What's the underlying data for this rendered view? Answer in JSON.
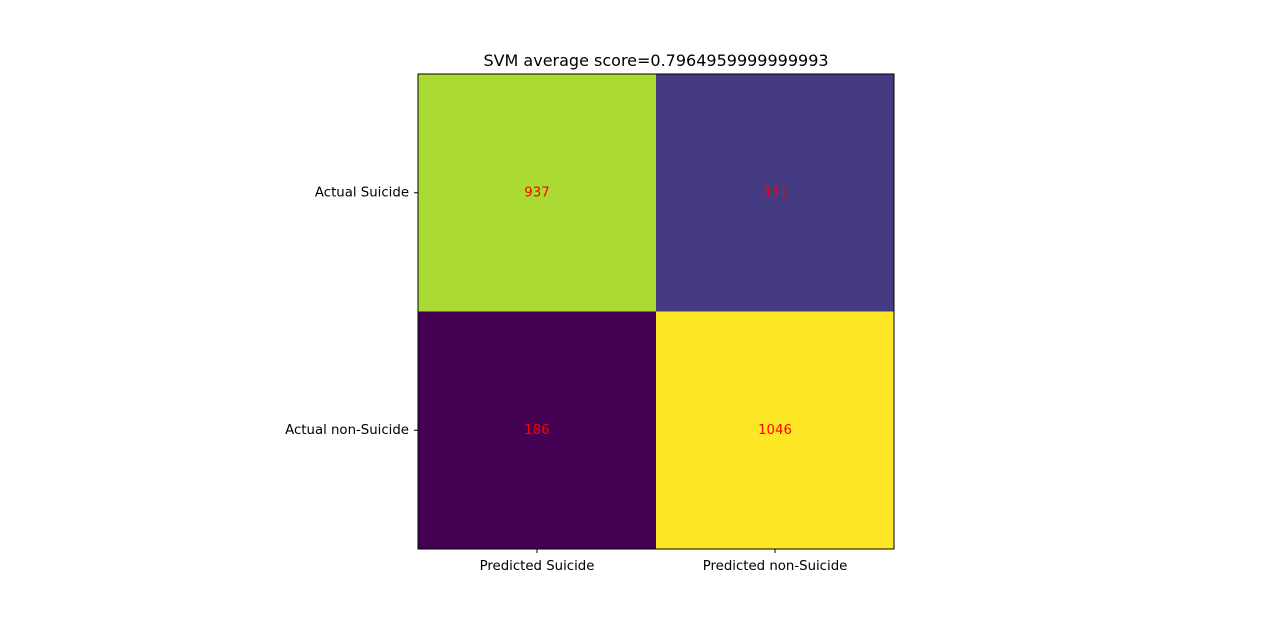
{
  "chart_data": {
    "type": "heatmap",
    "title": "SVM average score=0.7964959999999993",
    "xlabel": "",
    "ylabel": "",
    "x_categories": [
      "Predicted Suicide",
      "Predicted non-Suicide"
    ],
    "y_categories": [
      "Actual Suicide",
      "Actual non-Suicide"
    ],
    "values": [
      [
        937,
        331
      ],
      [
        186,
        1046
      ]
    ],
    "colormap": "viridis",
    "value_range": [
      186,
      1046
    ],
    "annotation_color": "#ff0000",
    "grid": false
  }
}
